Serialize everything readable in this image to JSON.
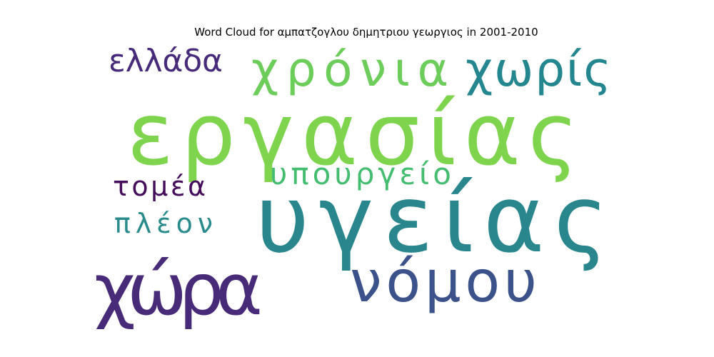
{
  "chart_data": {
    "type": "wordcloud",
    "title": "Word Cloud for αμπατζογλου δημητριου γεωργιος in 2001-2010",
    "words": [
      {
        "text": "εργασίας",
        "color": "#7ed54d"
      },
      {
        "text": "υγείας",
        "color": "#2a868d"
      },
      {
        "text": "χώρα",
        "color": "#472a78"
      },
      {
        "text": "νόμου",
        "color": "#3b528b"
      },
      {
        "text": "χρόνια",
        "color": "#6ccd5a"
      },
      {
        "text": "χωρίς",
        "color": "#24868e"
      },
      {
        "text": "υπουργείο",
        "color": "#45bd70"
      },
      {
        "text": "ελλάδα",
        "color": "#472a7a"
      },
      {
        "text": "τομέα",
        "color": "#440c5a"
      },
      {
        "text": "πλέον",
        "color": "#2a8b8c"
      }
    ]
  }
}
